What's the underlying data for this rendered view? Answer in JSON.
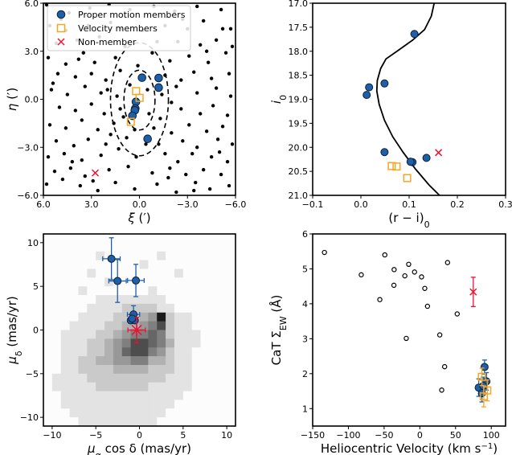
{
  "colors": {
    "member": "#1f5fa8",
    "velocity": "#f5a623",
    "nonmember": "#ee1133",
    "field": "#000000"
  },
  "chart_data": [
    {
      "type": "scatter",
      "id": "spatial",
      "xlabel": {
        "main": "ξ",
        "rest": " (′)"
      },
      "ylabel": {
        "main": "η",
        "rest": " (′)"
      },
      "xlim": [
        6,
        -6
      ],
      "ylim": [
        -6,
        6
      ],
      "xticks": [
        6,
        3,
        0,
        -3,
        -6
      ],
      "xtick_labels": [
        "6.0",
        "3.0",
        "0.0",
        "−3.0",
        "−6.0"
      ],
      "yticks": [
        -6,
        -3,
        0,
        3,
        6
      ],
      "ytick_labels": [
        "−6.0",
        "−3.0",
        "0.0",
        "3.0",
        "6.0"
      ],
      "legend": {
        "placement": "upper-left",
        "entries": [
          "Proper motion members",
          "Velocity members",
          "Non-member"
        ]
      },
      "ellipses": [
        {
          "cx": 0,
          "cy": -0.05,
          "a": 0.97,
          "b": 1.87
        },
        {
          "cx": 0,
          "cy": 0,
          "a": 1.81,
          "b": 3.53
        }
      ],
      "field": [
        [
          5.8,
          5.9
        ],
        [
          4.4,
          5.4
        ],
        [
          3.1,
          5.7
        ],
        [
          1.9,
          5.9
        ],
        [
          0.6,
          5.6
        ],
        [
          -0.9,
          5.8
        ],
        [
          -2.2,
          5.5
        ],
        [
          -3.6,
          5.8
        ],
        [
          -5.1,
          5.6
        ],
        [
          -5.7,
          4.4
        ],
        [
          5.6,
          4.6
        ],
        [
          4.6,
          4.3
        ],
        [
          3.2,
          4.6
        ],
        [
          1.8,
          4.8
        ],
        [
          -1.6,
          4.6
        ],
        [
          -3.0,
          4.4
        ],
        [
          -4.0,
          4.9
        ],
        [
          -5.2,
          4.4
        ],
        [
          5.2,
          3.5
        ],
        [
          3.9,
          3.7
        ],
        [
          2.5,
          3.9
        ],
        [
          -2.4,
          3.6
        ],
        [
          -3.8,
          3.4
        ],
        [
          -4.8,
          3.7
        ],
        [
          -5.8,
          3.3
        ],
        [
          5.7,
          2.6
        ],
        [
          4.6,
          2.2
        ],
        [
          3.5,
          2.9
        ],
        [
          2.8,
          2.3
        ],
        [
          1.5,
          2.6
        ],
        [
          -0.8,
          2.9
        ],
        [
          -1.9,
          2.4
        ],
        [
          -3.1,
          2.7
        ],
        [
          -4.3,
          2.3
        ],
        [
          -5.4,
          2.9
        ],
        [
          5.1,
          1.6
        ],
        [
          4.0,
          1.4
        ],
        [
          3.0,
          1.6
        ],
        [
          2.1,
          1.2
        ],
        [
          1.2,
          1.8
        ],
        [
          -1.6,
          1.5
        ],
        [
          -2.6,
          1.2
        ],
        [
          -3.4,
          1.7
        ],
        [
          -4.5,
          1.3
        ],
        [
          -5.6,
          1.6
        ],
        [
          5.5,
          0.6
        ],
        [
          4.5,
          0.3
        ],
        [
          3.4,
          0.8
        ],
        [
          2.4,
          0.4
        ],
        [
          1.4,
          0.2
        ],
        [
          0.6,
          0.9
        ],
        [
          -0.5,
          0.6
        ],
        [
          -1.4,
          0.3
        ],
        [
          -2.3,
          0.8
        ],
        [
          -3.6,
          0.4
        ],
        [
          -4.8,
          0.7
        ],
        [
          -5.7,
          0.2
        ],
        [
          5.0,
          -0.5
        ],
        [
          4.0,
          -0.7
        ],
        [
          3.0,
          -0.3
        ],
        [
          2.2,
          -0.9
        ],
        [
          1.2,
          -0.6
        ],
        [
          -0.6,
          -0.9
        ],
        [
          -1.3,
          -1.2
        ],
        [
          -2.6,
          -0.6
        ],
        [
          -3.8,
          -0.9
        ],
        [
          -4.6,
          -0.4
        ],
        [
          -5.5,
          -1.0
        ],
        [
          5.6,
          -1.6
        ],
        [
          4.6,
          -1.8
        ],
        [
          3.6,
          -1.3
        ],
        [
          2.6,
          -1.9
        ],
        [
          1.6,
          -1.5
        ],
        [
          0.3,
          -1.9
        ],
        [
          -0.9,
          -1.8
        ],
        [
          -2.0,
          -2.1
        ],
        [
          -3.1,
          -1.6
        ],
        [
          -4.2,
          -2.0
        ],
        [
          -5.2,
          -1.7
        ],
        [
          5.2,
          -2.6
        ],
        [
          4.1,
          -2.9
        ],
        [
          3.2,
          -2.5
        ],
        [
          2.1,
          -2.8
        ],
        [
          0.8,
          -2.4
        ],
        [
          -1.2,
          -2.8
        ],
        [
          -2.7,
          -2.6
        ],
        [
          -3.6,
          -3.0
        ],
        [
          -4.9,
          -2.5
        ],
        [
          -5.8,
          -2.8
        ],
        [
          5.7,
          -3.6
        ],
        [
          4.7,
          -3.4
        ],
        [
          3.6,
          -3.8
        ],
        [
          2.4,
          -3.5
        ],
        [
          1.3,
          -3.1
        ],
        [
          0.2,
          -3.6
        ],
        [
          -1.6,
          -3.4
        ],
        [
          -2.4,
          -3.9
        ],
        [
          -3.3,
          -3.4
        ],
        [
          -4.5,
          -3.6
        ],
        [
          -5.5,
          -3.9
        ],
        [
          5.3,
          -4.5
        ],
        [
          4.3,
          -4.3
        ],
        [
          3.4,
          -4.8
        ],
        [
          1.9,
          -4.4
        ],
        [
          0.7,
          -4.2
        ],
        [
          -0.8,
          -4.6
        ],
        [
          -1.9,
          -4.3
        ],
        [
          -2.9,
          -4.7
        ],
        [
          -4.0,
          -4.4
        ],
        [
          -5.1,
          -4.7
        ],
        [
          5.8,
          -5.3
        ],
        [
          4.8,
          -5.0
        ],
        [
          3.7,
          -5.4
        ],
        [
          2.6,
          -5.7
        ],
        [
          1.5,
          -5.2
        ],
        [
          0.3,
          -5.6
        ],
        [
          -1.1,
          -5.3
        ],
        [
          -2.3,
          -5.8
        ],
        [
          -3.5,
          -5.2
        ],
        [
          -4.4,
          -5.6
        ],
        [
          -5.6,
          -5.4
        ],
        [
          4.9,
          5.0
        ],
        [
          -0.2,
          4.3
        ],
        [
          0.9,
          3.3
        ],
        [
          -1.1,
          3.6
        ],
        [
          2.0,
          0.6
        ],
        [
          -2.0,
          -0.2
        ],
        [
          1.8,
          -2.2
        ],
        [
          -0.4,
          -2.8
        ],
        [
          4.2,
          -3.9
        ],
        [
          -4.2,
          3.0
        ],
        [
          2.9,
          -5.1
        ],
        [
          -3.4,
          -5.7
        ],
        [
          5.4,
          1.0
        ],
        [
          -5.0,
          -3.3
        ],
        [
          1.1,
          4.4
        ],
        [
          -2.7,
          5.0
        ],
        [
          3.8,
          2.5
        ],
        [
          -1.8,
          -4.9
        ],
        [
          0.1,
          2.1
        ],
        [
          1.0,
          -1.1
        ]
      ],
      "members": [
        [
          -0.16,
          1.35
        ],
        [
          -1.2,
          1.33
        ],
        [
          -1.2,
          0.73
        ],
        [
          0.22,
          -0.16
        ],
        [
          0.26,
          -0.58
        ],
        [
          0.29,
          -0.69
        ],
        [
          0.44,
          -1.03
        ],
        [
          -0.51,
          -2.47
        ]
      ],
      "velocity_members": [
        [
          0.21,
          0.51
        ],
        [
          -0.01,
          0.09
        ],
        [
          0.54,
          -1.41
        ]
      ],
      "nonmembers": [
        [
          2.76,
          -4.6
        ]
      ]
    },
    {
      "type": "scatter",
      "id": "cmd",
      "xlabel": {
        "main": "(r − i)",
        "sub": "0"
      },
      "ylabel": {
        "main": "i",
        "sub": "0"
      },
      "xlim": [
        -0.1,
        0.3
      ],
      "ylim": [
        21,
        17
      ],
      "xticks": [
        -0.1,
        0,
        0.1,
        0.2,
        0.3
      ],
      "xtick_labels": [
        "−0.1",
        "0.0",
        "0.1",
        "0.2",
        "0.3"
      ],
      "yticks": [
        17,
        17.5,
        18,
        18.5,
        19,
        19.5,
        20,
        20.5,
        21
      ],
      "ytick_labels": [
        "17.0",
        "17.5",
        "18.0",
        "18.5",
        "19.0",
        "19.5",
        "20.0",
        "20.5",
        "21.0"
      ],
      "isochrone": [
        [
          0.152,
          17.0
        ],
        [
          0.146,
          17.27
        ],
        [
          0.132,
          17.55
        ],
        [
          0.107,
          17.77
        ],
        [
          0.079,
          17.97
        ],
        [
          0.052,
          18.16
        ],
        [
          0.041,
          18.36
        ],
        [
          0.034,
          18.61
        ],
        [
          0.033,
          18.83
        ],
        [
          0.038,
          19.11
        ],
        [
          0.049,
          19.44
        ],
        [
          0.066,
          19.78
        ],
        [
          0.088,
          20.11
        ],
        [
          0.113,
          20.45
        ],
        [
          0.141,
          20.78
        ],
        [
          0.163,
          21.0
        ]
      ],
      "members": [
        [
          0.111,
          17.64
        ],
        [
          0.049,
          18.67
        ],
        [
          0.017,
          18.75
        ],
        [
          0.012,
          18.91
        ],
        [
          0.049,
          20.1
        ],
        [
          0.107,
          20.31
        ],
        [
          0.103,
          20.3
        ],
        [
          0.136,
          20.22
        ]
      ],
      "velocity_members": [
        [
          0.064,
          20.39
        ],
        [
          0.074,
          20.4
        ],
        [
          0.096,
          20.64
        ]
      ],
      "nonmembers": [
        [
          0.161,
          20.11
        ]
      ]
    },
    {
      "type": "scatter",
      "id": "proper-motion",
      "xlabel": {
        "main": "μ",
        "sub": "α",
        "rest": " cos δ (mas/yr)"
      },
      "ylabel": {
        "main": "μ",
        "sub": "δ",
        "rest": " (mas/yr)"
      },
      "xlim": [
        -11,
        11
      ],
      "ylim": [
        -11,
        11
      ],
      "xticks": [
        -10,
        -5,
        0,
        5,
        10
      ],
      "xtick_labels": [
        "−10",
        "−5",
        "0",
        "5",
        "10"
      ],
      "yticks": [
        -10,
        -5,
        0,
        5,
        10
      ],
      "ytick_labels": [
        "−10",
        "−5",
        "0",
        "5",
        "10"
      ],
      "density_rows": [
        "0000000000000000000000",
        "0000000000000000000000",
        "0000001000000100000000",
        "0000000000010000000000",
        "0000010000000001000000",
        "0000000100000000000000",
        "0000100000001000000000",
        "0000001111111100000000",
        "0000011112222110000000",
        "0000111122234921100000",
        "0001111223345721100000",
        "0011112234556521110000",
        "0011122345776531110000",
        "0011122346775421100000",
        "0011223344553321100000",
        "0011222233332221100000",
        "0111122222222211100000",
        "0111112222221111100000",
        "0011111111111111000000",
        "0011111111111110000000",
        "0001111111111100000000",
        "0000111111111000000000"
      ],
      "members": [
        {
          "x": -3.21,
          "y": 8.16,
          "xerr": 1.0,
          "yerr": 2.4
        },
        {
          "x": -2.51,
          "y": 5.61,
          "xerr": 1.0,
          "yerr": 2.45
        },
        {
          "x": -0.41,
          "y": 5.67,
          "xerr": 0.95,
          "yerr": 1.85
        },
        {
          "x": -0.68,
          "y": 1.78,
          "xerr": 0.7,
          "yerr": 1.0
        },
        {
          "x": -0.99,
          "y": 1.1,
          "xerr": 0,
          "yerr": 0
        },
        {
          "x": -0.53,
          "y": 1.1,
          "xerr": 0,
          "yerr": 0
        },
        {
          "x": -0.84,
          "y": 1.3,
          "xerr": 0,
          "yerr": 0
        }
      ],
      "nonmembers": [
        {
          "x": -0.32,
          "y": 0,
          "xerr": 1.0,
          "yerr": 1.45
        }
      ]
    },
    {
      "type": "scatter",
      "id": "velocity-ew",
      "xlabel": {
        "main": "Heliocentric Velocity (km s",
        "sup": "−1",
        "rest": ")"
      },
      "ylabel": {
        "main": "CaT Σ",
        "sub": "EW",
        "rest": " (Å)"
      },
      "xlim": [
        -150,
        120
      ],
      "ylim": [
        0.5,
        6
      ],
      "xticks": [
        -150,
        -100,
        -50,
        0,
        50,
        100
      ],
      "xtick_labels": [
        "−150",
        "−100",
        "−50",
        "0",
        "50",
        "100"
      ],
      "yticks": [
        1,
        2,
        3,
        4,
        5,
        6
      ],
      "ytick_labels": [
        "1",
        "2",
        "3",
        "4",
        "5",
        "6"
      ],
      "field": [
        [
          -133.5,
          5.47
        ],
        [
          -82,
          4.83
        ],
        [
          -49,
          5.4
        ],
        [
          -36,
          4.98
        ],
        [
          -36.3,
          4.53
        ],
        [
          -56,
          4.12
        ],
        [
          -21,
          4.8
        ],
        [
          -15.6,
          5.13
        ],
        [
          -7.4,
          4.91
        ],
        [
          2.4,
          4.77
        ],
        [
          6.9,
          4.44
        ],
        [
          10.7,
          3.93
        ],
        [
          38.8,
          5.18
        ],
        [
          52.3,
          3.71
        ],
        [
          27.9,
          3.11
        ],
        [
          -19,
          3.01
        ],
        [
          34.7,
          2.2
        ],
        [
          30.6,
          1.53
        ]
      ],
      "members": [
        {
          "x": 90.6,
          "y": 2.19,
          "yerr": 0.2
        },
        {
          "x": 82.4,
          "y": 1.6,
          "yerr": 0.25
        },
        {
          "x": 93.2,
          "y": 1.78,
          "yerr": 0.25
        },
        {
          "x": 86.9,
          "y": 1.44,
          "yerr": 0.25
        },
        {
          "x": 88.7,
          "y": 1.65,
          "yerr": 0.25
        }
      ],
      "velocity_members": [
        {
          "x": 86.9,
          "y": 1.91,
          "yerr": 0.25
        },
        {
          "x": 94.4,
          "y": 1.52,
          "yerr": 0.3
        },
        {
          "x": 89.5,
          "y": 1.35,
          "yerr": 0.3
        }
      ],
      "nonmembers": [
        {
          "x": 74.8,
          "y": 4.34,
          "yerr": 0.42
        }
      ]
    }
  ]
}
